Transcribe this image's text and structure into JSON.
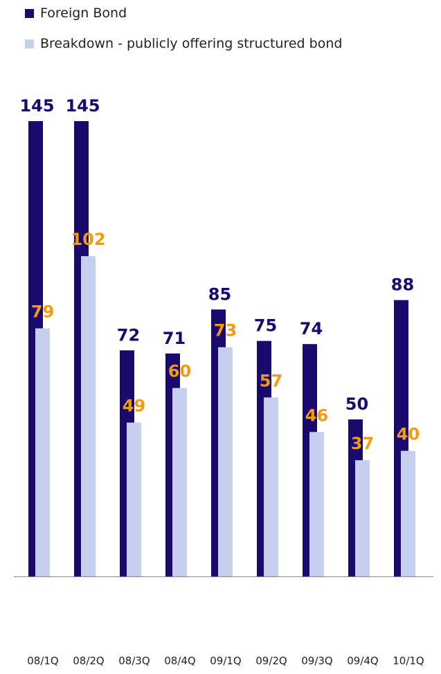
{
  "colors": {
    "foreign_bond": "#1a0a6e",
    "structured_bond": "#c6d0ee",
    "foreign_label": "#1a0a6e",
    "structured_label": "#f59a0c",
    "axis": "#888888"
  },
  "legend": [
    {
      "label": "Foreign Bond",
      "color": "#1a0a6e"
    },
    {
      "label": "Breakdown - publicly offering structured bond",
      "color": "#c6d0ee"
    }
  ],
  "chart_data": {
    "type": "bar",
    "title": "",
    "xlabel": "",
    "ylabel": "",
    "categories": [
      "08/1Q",
      "08/2Q",
      "08/3Q",
      "08/4Q",
      "09/1Q",
      "09/2Q",
      "09/3Q",
      "09/4Q",
      "10/1Q"
    ],
    "series": [
      {
        "name": "Foreign Bond",
        "values": [
          145,
          145,
          72,
          71,
          85,
          75,
          74,
          50,
          88
        ]
      },
      {
        "name": "Breakdown - publicly offering structured bond",
        "values": [
          79,
          102,
          49,
          60,
          73,
          57,
          46,
          37,
          40
        ]
      }
    ],
    "ylim": [
      0,
      145
    ],
    "grid": false,
    "legend_position": "top-left"
  }
}
